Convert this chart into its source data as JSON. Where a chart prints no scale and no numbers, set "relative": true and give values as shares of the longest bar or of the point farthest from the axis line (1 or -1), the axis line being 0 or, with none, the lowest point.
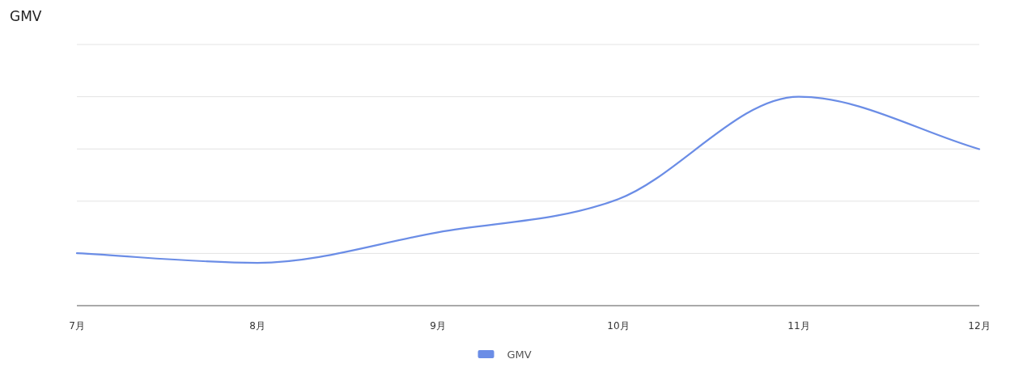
{
  "chart_data": {
    "type": "line",
    "title": "GMV",
    "relative": true,
    "grid": "y",
    "legend": "bottom",
    "categories": [
      "7月",
      "8月",
      "9月",
      "10月",
      "11月",
      "12月"
    ],
    "series": [
      {
        "name": "GMV",
        "color": "#6b8de6",
        "values": [
          0.251,
          0.205,
          0.351,
          0.51,
          1,
          0.749
        ]
      }
    ]
  }
}
